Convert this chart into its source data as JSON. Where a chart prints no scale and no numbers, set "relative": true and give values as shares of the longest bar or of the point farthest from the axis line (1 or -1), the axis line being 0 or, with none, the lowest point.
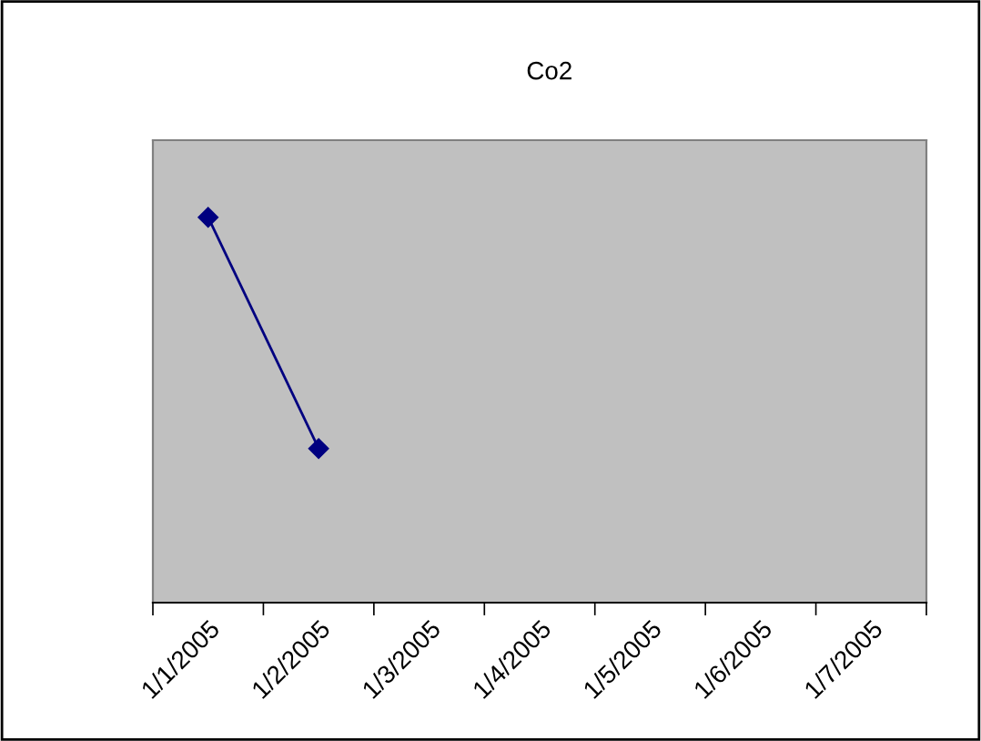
{
  "chart_data": {
    "type": "line",
    "title": "Co2",
    "relative": true,
    "categories": [
      "1/1/2005",
      "1/2/2005",
      "1/3/2005",
      "1/4/2005",
      "1/5/2005",
      "1/6/2005",
      "1/7/2005"
    ],
    "series": [
      {
        "color": "#000080",
        "values": [
          1,
          0.4,
          null,
          null,
          null,
          null,
          null
        ]
      }
    ],
    "marker": "diamond",
    "line_style": "solid",
    "grid": false,
    "legend": false
  }
}
